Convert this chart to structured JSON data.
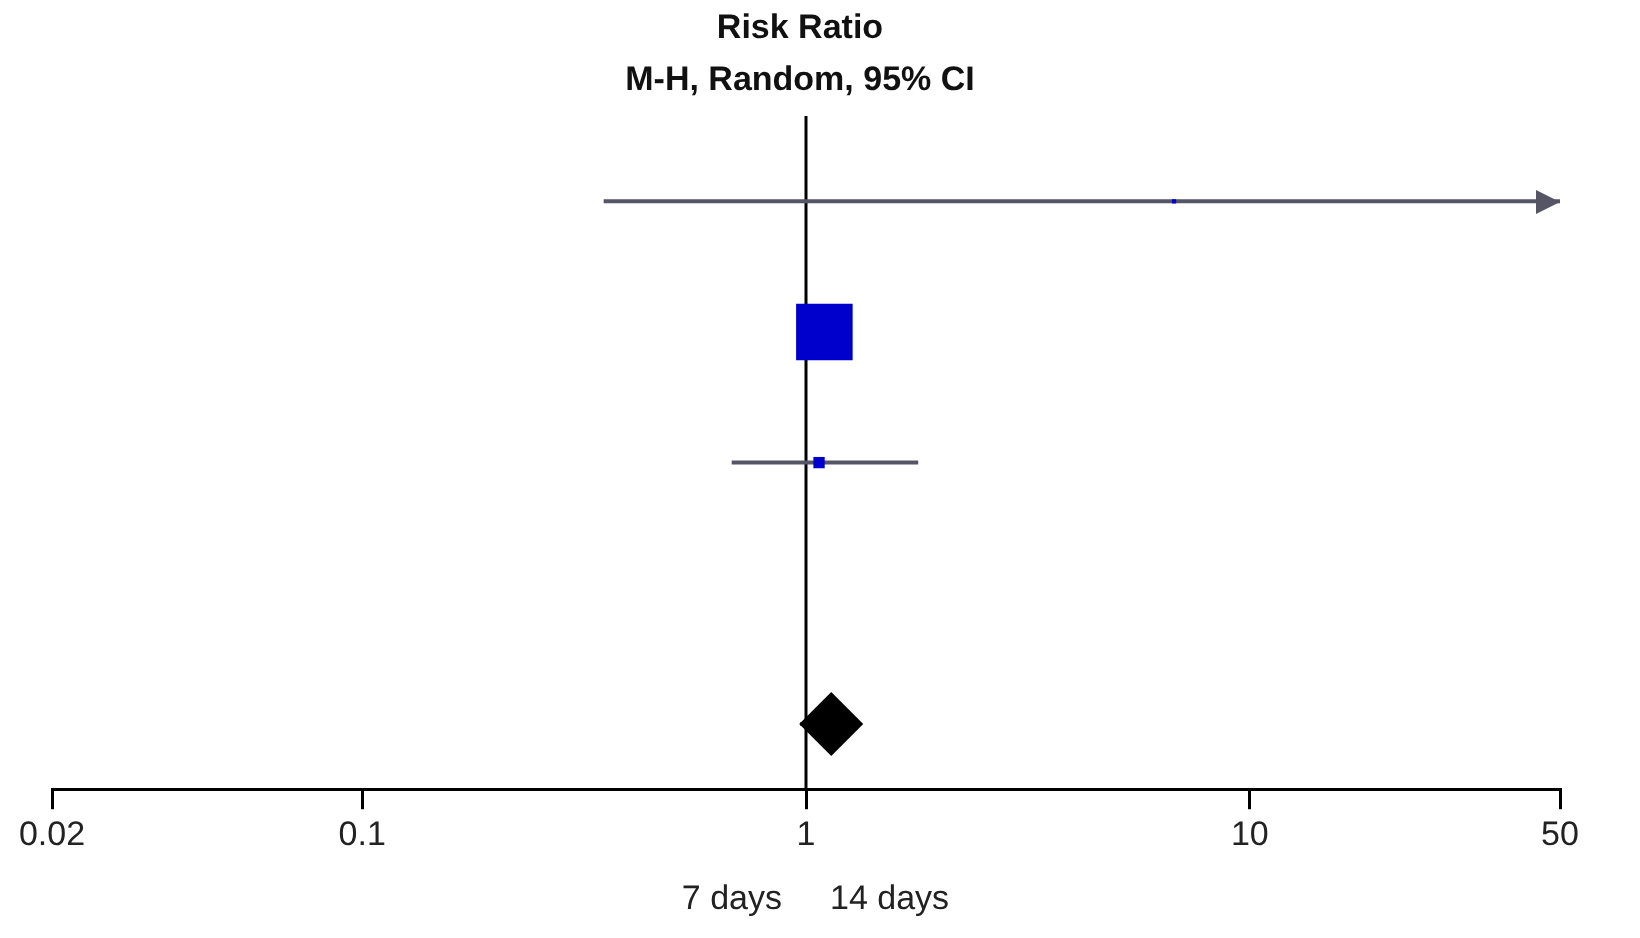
{
  "chart_data": {
    "type": "scatter",
    "title": "Risk Ratio",
    "subtitle": "M-H, Random, 95% CI",
    "categories": [
      null,
      null,
      null,
      null,
      null
    ],
    "orientation": "horizontal",
    "log": "x",
    "xlim": [
      0.02,
      50
    ],
    "xticks": [
      0.02,
      0.1,
      1,
      10,
      50
    ],
    "ref_lines": [
      {
        "axis": "x",
        "value": 1,
        "color": "#000000"
      }
    ],
    "annotations": [
      "7 days",
      "14 days"
    ],
    "grid": false,
    "legend": false,
    "series": [
      {
        "color": "#0000cc",
        "marker": "square",
        "values": [
          6.75,
          1.1,
          1.07,
          null,
          null
        ],
        "errors": [
          [
            0.35,
            50
          ],
          null,
          [
            0.68,
            1.79
          ],
          null,
          null
        ],
        "sizes": [
          0.005,
          1,
          0.04,
          null,
          null
        ]
      },
      {
        "color": "#000000",
        "marker": "diamond",
        "values": [
          null,
          null,
          null,
          null,
          1.14
        ],
        "errors": [
          null,
          null,
          null,
          null,
          [
            0.97,
            1.33
          ]
        ]
      }
    ]
  }
}
